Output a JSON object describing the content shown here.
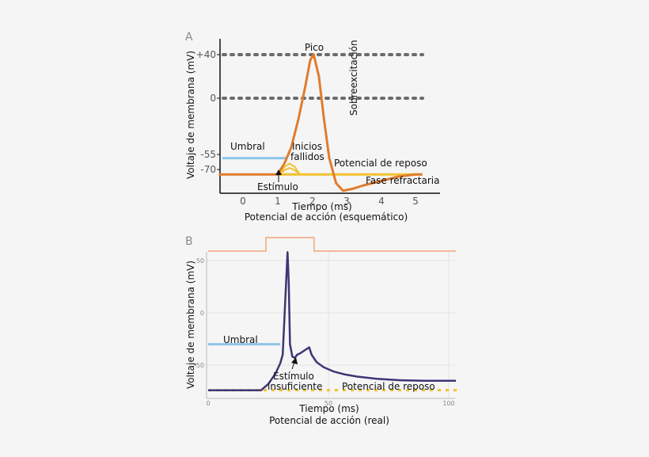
{
  "colors": {
    "orange": "#e07c2e",
    "blue_threshold": "#8ec5ea",
    "yellow": "#f2c12e",
    "dotted": "#6b6b6b",
    "purple": "#3f3575",
    "stimulus_orange": "#f2a57a"
  },
  "chart_data": [
    {
      "panel_label": "A",
      "type": "line",
      "title": "Potencial de acción (esquemático)",
      "xlabel": "Tiempo (ms)",
      "ylabel": "Voltaje de membrana (mV)",
      "x_ticks": [
        "0",
        "1",
        "2",
        "3",
        "4",
        "5"
      ],
      "y_ticks": [
        "+40",
        "0",
        "-55",
        "-70"
      ],
      "xlim": [
        -0.7,
        5.7
      ],
      "ylim": [
        -92,
        50
      ],
      "reference_lines": [
        40,
        0
      ],
      "series": [
        {
          "x": [
            -0.7,
            1.0,
            1.2,
            1.4,
            1.6,
            1.8,
            1.95,
            2.05,
            2.2,
            2.35,
            2.5,
            2.7,
            2.9,
            3.2,
            3.5,
            4.0,
            4.5,
            5.0,
            5.2
          ],
          "y": [
            -70,
            -70,
            -60,
            -45,
            -20,
            10,
            35,
            40,
            20,
            -20,
            -55,
            -78,
            -85,
            -83,
            -80,
            -76,
            -72,
            -70,
            -70
          ]
        }
      ],
      "threshold": {
        "label": "Umbral",
        "value": -55,
        "x_range": [
          -0.6,
          1.25
        ]
      },
      "resting": {
        "label": "Potencial de reposo",
        "value": -70,
        "x_range": [
          1.0,
          5.2
        ]
      },
      "failed_initiations": [
        {
          "x": [
            1.05,
            1.2,
            1.35,
            1.5,
            1.65
          ],
          "y": [
            -70,
            -66,
            -64,
            -66,
            -70
          ]
        },
        {
          "x": [
            1.05,
            1.2,
            1.35,
            1.5,
            1.65
          ],
          "y": [
            -70,
            -63,
            -60,
            -63,
            -70
          ]
        }
      ],
      "annotations": {
        "peak": "Pico",
        "overshoot": "Sobreexcitación",
        "failed": [
          "Inicios",
          "fallidos"
        ],
        "stimulus": "Estímulo",
        "refractory": "Fase refractaria"
      }
    },
    {
      "panel_label": "B",
      "type": "line",
      "title": "Potencial de acción (real)",
      "xlabel": "Tiempo (ms)",
      "ylabel": "Voltaje de membrana (mV)",
      "x_ticks": [
        "0",
        "50",
        "100"
      ],
      "y_ticks": [
        "50",
        "0",
        "-50"
      ],
      "xlim": [
        0,
        105
      ],
      "ylim": [
        -80,
        70
      ],
      "series": [
        {
          "x": [
            0,
            20,
            22,
            25,
            28,
            30,
            31,
            32,
            33,
            33.5,
            34,
            35,
            36,
            37,
            38,
            40,
            42,
            43,
            45,
            48,
            52,
            57,
            62,
            70,
            80,
            90,
            100,
            103
          ],
          "y": [
            -74,
            -74,
            -74,
            -68,
            -58,
            -48,
            -40,
            10,
            58,
            30,
            -30,
            -42,
            -43,
            -40,
            -39,
            -36,
            -33,
            -40,
            -47,
            -52,
            -56,
            -59,
            -61,
            -63,
            -64.5,
            -65,
            -65,
            -65
          ]
        }
      ],
      "stimulus_trace": {
        "x": [
          0,
          24,
          24,
          44,
          44,
          103
        ],
        "level": [
          0,
          0,
          1,
          1,
          0,
          0
        ]
      },
      "threshold": {
        "label": "Umbral",
        "value": -30,
        "x_range": [
          0,
          30
        ]
      },
      "resting": {
        "label": "Potencial de reposo",
        "value": -74,
        "x_range": [
          0,
          105
        ]
      },
      "annotations": {
        "stimulus": [
          "Estímulo",
          "insuficiente"
        ]
      }
    }
  ]
}
